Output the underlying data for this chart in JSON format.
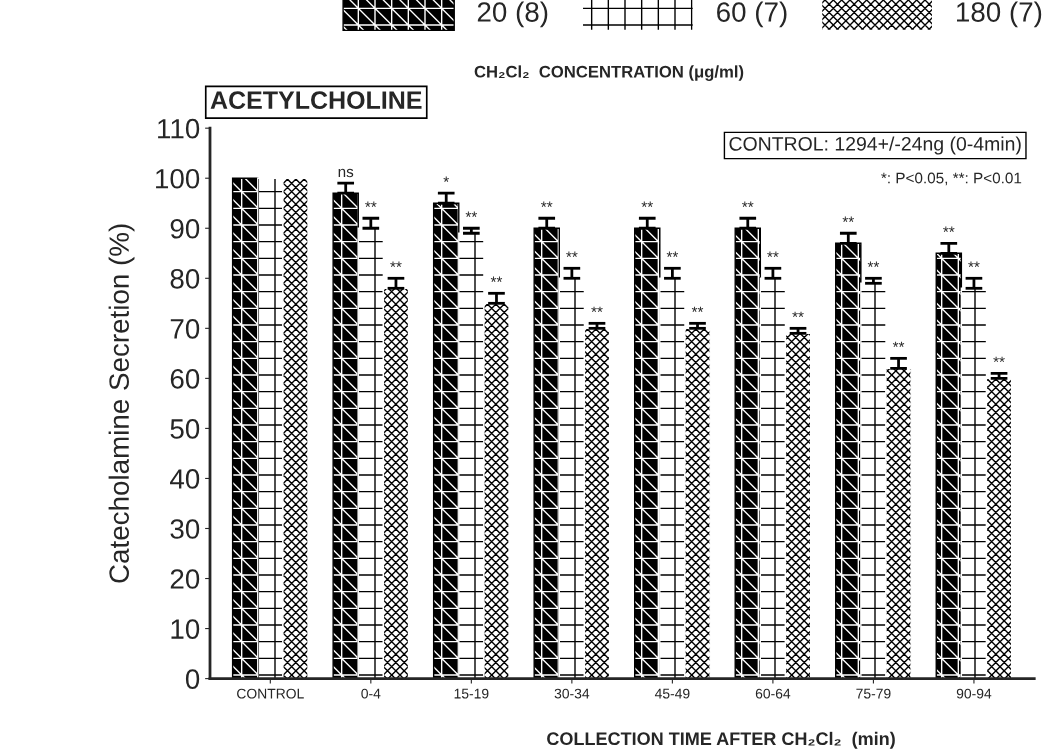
{
  "chart_data": {
    "type": "bar",
    "title": "ACETYLCHOLINE",
    "xlabel": "COLLECTION TIME AFTER CH₂Cl₂  (min)",
    "ylabel": "Catecholamine Secretion (%)",
    "legend_title": "CH₂Cl₂  CONCENTRATION (μg/ml)",
    "categories": [
      "CONTROL",
      "0-4",
      "15-19",
      "30-34",
      "45-49",
      "60-64",
      "75-79",
      "90-94"
    ],
    "series": [
      {
        "name": "20 (8)",
        "color": "#000000",
        "values": [
          100,
          97,
          95,
          90,
          90,
          90,
          87,
          85
        ],
        "errors": [
          null,
          2,
          2,
          2,
          2,
          2,
          2,
          2
        ],
        "value_labels": [
          null,
          "ns",
          "*",
          "**",
          "**",
          "**",
          "**",
          "**"
        ]
      },
      {
        "name": "60 (7)",
        "color": "#ffffff",
        "values": [
          100,
          90,
          89,
          80,
          80,
          80,
          79,
          78
        ],
        "errors": [
          null,
          2,
          1,
          2,
          2,
          2,
          1,
          2
        ],
        "value_labels": [
          null,
          "**",
          "**",
          "**",
          "**",
          "**",
          "**",
          "**"
        ]
      },
      {
        "name": "180 (7)",
        "color": "#ffffff",
        "values": [
          100,
          78,
          75,
          70,
          70,
          69,
          62,
          60
        ],
        "errors": [
          null,
          2,
          2,
          1,
          1,
          1,
          2,
          1
        ],
        "value_labels": [
          null,
          "**",
          "**",
          "**",
          "**",
          "**",
          "**",
          "**"
        ]
      }
    ],
    "ylim": [
      0,
      110
    ],
    "yticks": [
      0,
      10,
      20,
      30,
      40,
      50,
      60,
      70,
      80,
      90,
      100,
      110
    ],
    "grid": false,
    "legend": "top",
    "annotations": [
      "CONTROL: 1294+/-24ng (0-4min)",
      "*: P<0.05, **: P<0.01"
    ]
  }
}
